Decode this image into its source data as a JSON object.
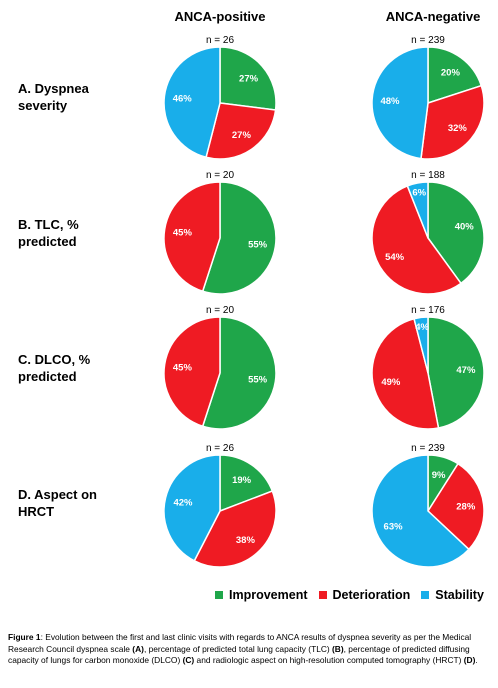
{
  "column_headers": [
    "ANCA-positive",
    "ANCA-negative"
  ],
  "rows": [
    {
      "label_lines": [
        "A. Dyspnea",
        "severity"
      ]
    },
    {
      "label_lines": [
        "B. TLC, %",
        "predicted"
      ]
    },
    {
      "label_lines": [
        "C. DLCO, %",
        "predicted"
      ]
    },
    {
      "label_lines": [
        "D. Aspect on",
        "HRCT"
      ]
    }
  ],
  "legend": {
    "items": [
      {
        "label": "Improvement",
        "color": "#1fa64a"
      },
      {
        "label": "Deterioration",
        "color": "#ef1b23"
      },
      {
        "label": "Stability",
        "color": "#19aeea"
      }
    ]
  },
  "chart_data": [
    {
      "type": "pie",
      "group": "ANCA-positive",
      "panel": "A. Dyspnea severity",
      "n_label": "n = 26",
      "slices": [
        {
          "category": "Improvement",
          "value": 27,
          "label": "27%"
        },
        {
          "category": "Deterioration",
          "value": 27,
          "label": "27%"
        },
        {
          "category": "Stability",
          "value": 46,
          "label": "46%"
        }
      ]
    },
    {
      "type": "pie",
      "group": "ANCA-negative",
      "panel": "A. Dyspnea severity",
      "n_label": "n = 239",
      "slices": [
        {
          "category": "Improvement",
          "value": 20,
          "label": "20%"
        },
        {
          "category": "Deterioration",
          "value": 32,
          "label": "32%"
        },
        {
          "category": "Stability",
          "value": 48,
          "label": "48%"
        }
      ]
    },
    {
      "type": "pie",
      "group": "ANCA-positive",
      "panel": "B. TLC, % predicted",
      "n_label": "n = 20",
      "slices": [
        {
          "category": "Improvement",
          "value": 55,
          "label": "55%"
        },
        {
          "category": "Deterioration",
          "value": 45,
          "label": "45%"
        }
      ]
    },
    {
      "type": "pie",
      "group": "ANCA-negative",
      "panel": "B. TLC, % predicted",
      "n_label": "n = 188",
      "slices": [
        {
          "category": "Improvement",
          "value": 40,
          "label": "40%"
        },
        {
          "category": "Deterioration",
          "value": 54,
          "label": "54%"
        },
        {
          "category": "Stability",
          "value": 6,
          "label": "6%"
        }
      ]
    },
    {
      "type": "pie",
      "group": "ANCA-positive",
      "panel": "C. DLCO, % predicted",
      "n_label": "n = 20",
      "slices": [
        {
          "category": "Improvement",
          "value": 55,
          "label": "55%"
        },
        {
          "category": "Deterioration",
          "value": 45,
          "label": "45%"
        }
      ]
    },
    {
      "type": "pie",
      "group": "ANCA-negative",
      "panel": "C. DLCO, % predicted",
      "n_label": "n = 176",
      "slices": [
        {
          "category": "Improvement",
          "value": 47,
          "label": "47%"
        },
        {
          "category": "Deterioration",
          "value": 49,
          "label": "49%"
        },
        {
          "category": "Stability",
          "value": 4,
          "label": "4%"
        }
      ]
    },
    {
      "type": "pie",
      "group": "ANCA-positive",
      "panel": "D. Aspect on HRCT",
      "n_label": "n = 26",
      "slices": [
        {
          "category": "Improvement",
          "value": 19,
          "label": "19%"
        },
        {
          "category": "Deterioration",
          "value": 38,
          "label": "38%"
        },
        {
          "category": "Stability",
          "value": 42,
          "label": "42%"
        }
      ]
    },
    {
      "type": "pie",
      "group": "ANCA-negative",
      "panel": "D. Aspect on HRCT",
      "n_label": "n = 239",
      "slices": [
        {
          "category": "Improvement",
          "value": 9,
          "label": "9%"
        },
        {
          "category": "Deterioration",
          "value": 28,
          "label": "28%"
        },
        {
          "category": "Stability",
          "value": 63,
          "label": "63%"
        }
      ]
    }
  ],
  "caption": {
    "fig_label": "Figure 1",
    "t1": ": Evolution between the first and last clinic visits with regards to ANCA results of dyspnea severity as per the Medical Research Council dyspnea scale ",
    "b1": "(A)",
    "t2": ", percentage of predicted total lung capacity (TLC) ",
    "b2": "(B)",
    "t3": ", percentage of predicted diffusing capacity of lungs for carbon monoxide (DLCO) ",
    "b3": "(C)",
    "t4": " and radiologic aspect on high-resolution computed tomography (HRCT) ",
    "b4": "(D)",
    "t5": "."
  }
}
